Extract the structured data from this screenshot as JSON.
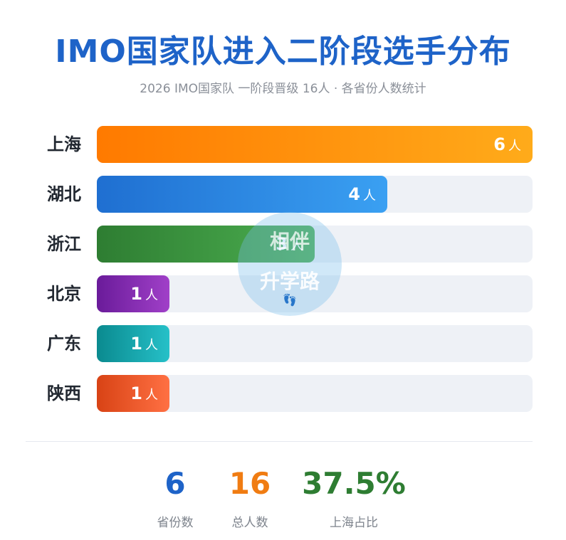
{
  "chart_data": {
    "type": "bar",
    "orientation": "horizontal",
    "title": "IMO国家队进入二阶段选手分布",
    "subtitle": "2026 IMO国家队 一阶段晋级 16人 · 各省份人数统计",
    "categories": [
      "上海",
      "湖北",
      "浙江",
      "北京",
      "广东",
      "陕西"
    ],
    "values": [
      6,
      4,
      3,
      1,
      1,
      1
    ],
    "unit": "人",
    "xlim": [
      0,
      6
    ],
    "grid": false,
    "bar_colors": [
      [
        "#ff7a00",
        "#ffab1a"
      ],
      [
        "#1f6fd1",
        "#3aa0f2"
      ],
      [
        "#2e7d32",
        "#4caf50"
      ],
      [
        "#6a1b9a",
        "#a040c8"
      ],
      [
        "#0a8a8f",
        "#26c0c8"
      ],
      [
        "#d84315",
        "#ff7043"
      ]
    ]
  },
  "stats": [
    {
      "value": "6",
      "label": "省份数",
      "color": "#1e63c8"
    },
    {
      "value": "16",
      "label": "总人数",
      "color": "#f07c12"
    },
    {
      "value": "37.5%",
      "label": "上海占比",
      "color": "#2e7d32"
    }
  ],
  "watermark": {
    "line1": "相伴",
    "line2": "升学路",
    "icon": "footprints-icon"
  }
}
